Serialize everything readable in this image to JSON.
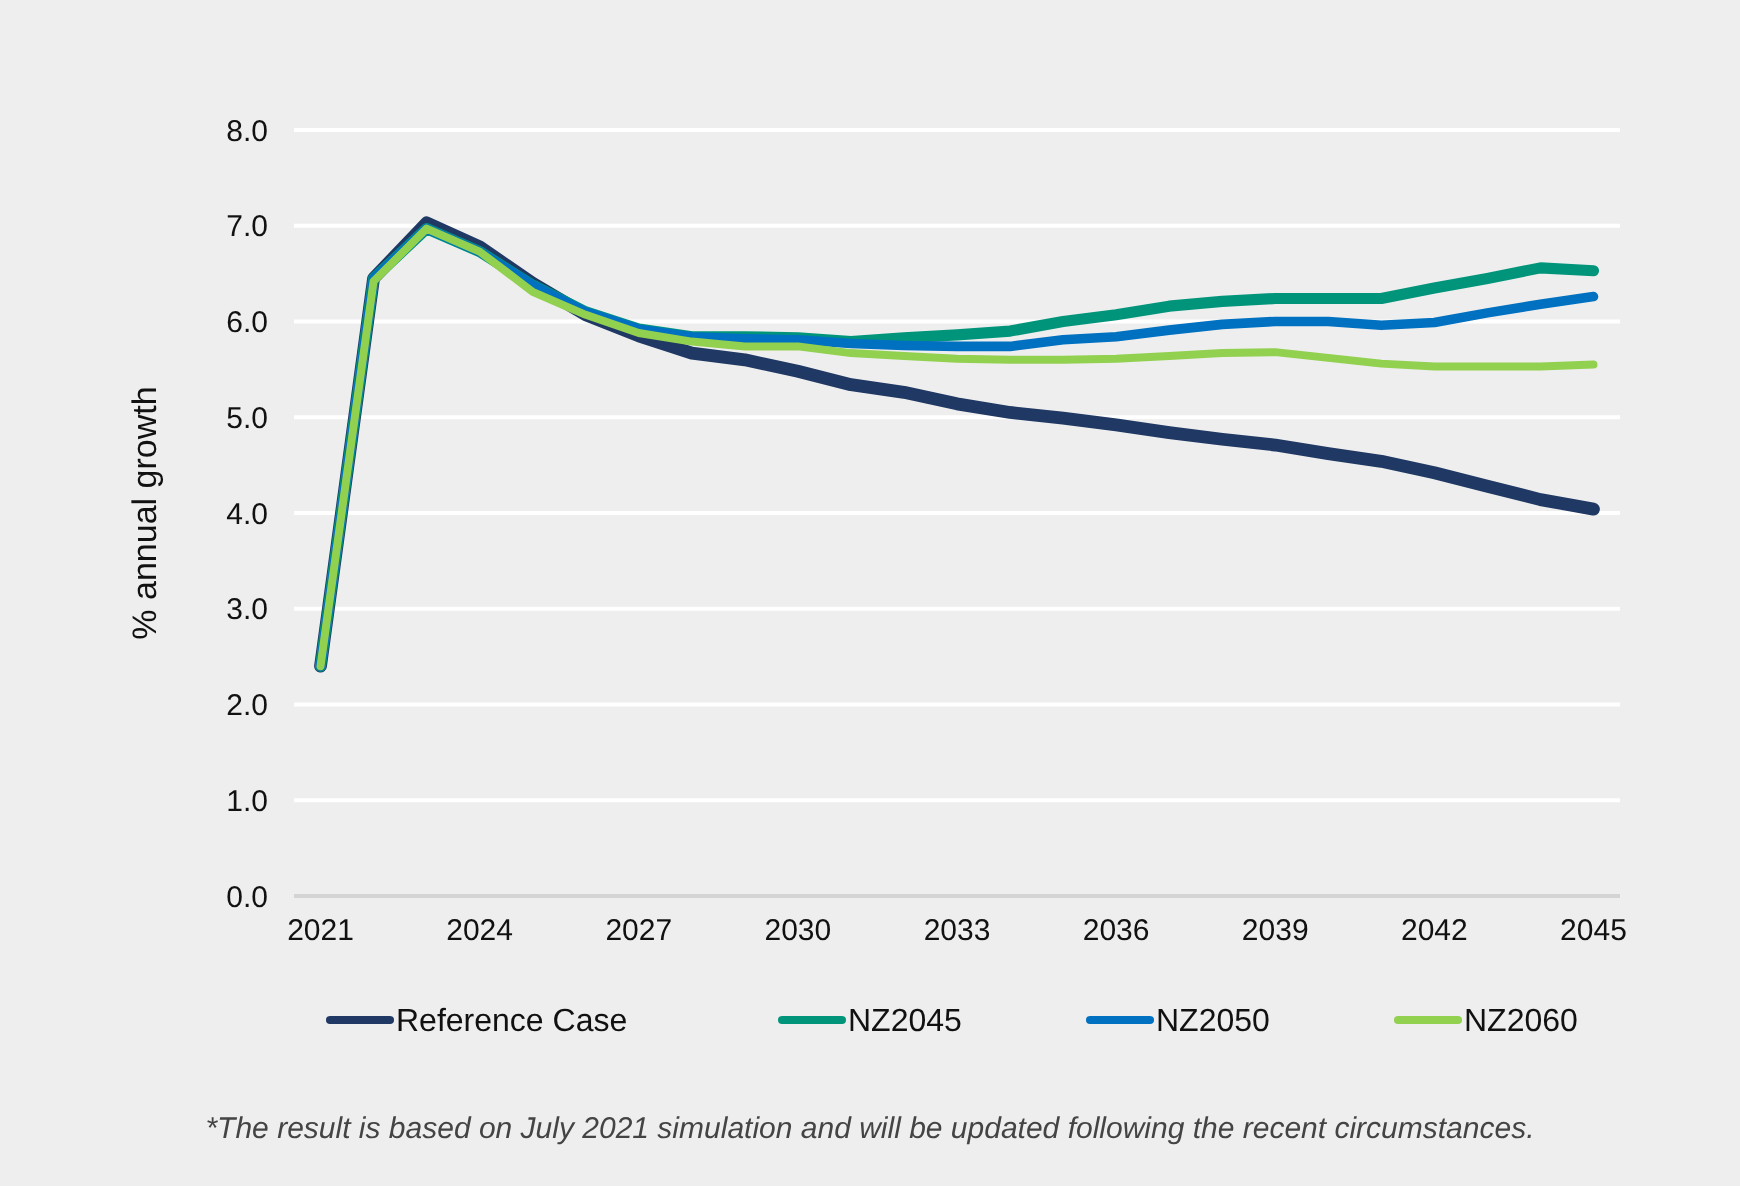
{
  "chart_data": {
    "type": "line",
    "ylabel": "% annual growth",
    "x": [
      2021,
      2022,
      2023,
      2024,
      2025,
      2026,
      2027,
      2028,
      2029,
      2030,
      2031,
      2032,
      2033,
      2034,
      2035,
      2036,
      2037,
      2038,
      2039,
      2040,
      2041,
      2042,
      2043,
      2044,
      2045
    ],
    "xlim": [
      2020.5,
      2045.5
    ],
    "xticks": [
      2021,
      2024,
      2027,
      2030,
      2033,
      2036,
      2039,
      2042,
      2045
    ],
    "ylim": [
      0,
      8
    ],
    "yticks": [
      {
        "value": 0,
        "label": "0.0"
      },
      {
        "value": 1,
        "label": "1.0"
      },
      {
        "value": 2,
        "label": "2.0"
      },
      {
        "value": 3,
        "label": "3.0"
      },
      {
        "value": 4,
        "label": "4.0"
      },
      {
        "value": 5,
        "label": "5.0"
      },
      {
        "value": 6,
        "label": "6.0"
      },
      {
        "value": 7,
        "label": "7.0"
      },
      {
        "value": 8,
        "label": "8.0"
      }
    ],
    "grid": "y",
    "legend": "bottom",
    "line_style": "solid",
    "marker": "none",
    "annotations": [
      "*The result is based on July 2021 simulation and will be updated following the recent circumstances."
    ],
    "series": [
      {
        "name": "Reference Case",
        "color": "#1f3864",
        "values": [
          2.4,
          6.45,
          7.03,
          6.78,
          6.4,
          6.07,
          5.85,
          5.67,
          5.6,
          5.48,
          5.34,
          5.26,
          5.14,
          5.05,
          4.99,
          4.92,
          4.84,
          4.77,
          4.71,
          4.62,
          4.54,
          4.42,
          4.28,
          4.14,
          4.04
        ]
      },
      {
        "name": "NZ2045",
        "color": "#00957a",
        "values": [
          2.4,
          6.45,
          6.97,
          6.73,
          6.38,
          6.1,
          5.92,
          5.84,
          5.84,
          5.83,
          5.79,
          5.83,
          5.86,
          5.9,
          6.0,
          6.07,
          6.16,
          6.21,
          6.24,
          6.24,
          6.24,
          6.35,
          6.45,
          6.56,
          6.53
        ]
      },
      {
        "name": "NZ2050",
        "color": "#0070c0",
        "values": [
          2.4,
          6.45,
          6.97,
          6.73,
          6.38,
          6.1,
          5.92,
          5.84,
          5.82,
          5.81,
          5.77,
          5.75,
          5.74,
          5.74,
          5.81,
          5.84,
          5.91,
          5.97,
          6.0,
          6.0,
          5.96,
          5.99,
          6.09,
          6.18,
          6.26
        ]
      },
      {
        "name": "NZ2060",
        "color": "#92d050",
        "values": [
          2.4,
          6.42,
          6.97,
          6.73,
          6.31,
          6.07,
          5.88,
          5.79,
          5.74,
          5.74,
          5.67,
          5.64,
          5.61,
          5.6,
          5.6,
          5.61,
          5.64,
          5.67,
          5.68,
          5.62,
          5.56,
          5.53,
          5.53,
          5.53,
          5.55
        ]
      }
    ]
  }
}
